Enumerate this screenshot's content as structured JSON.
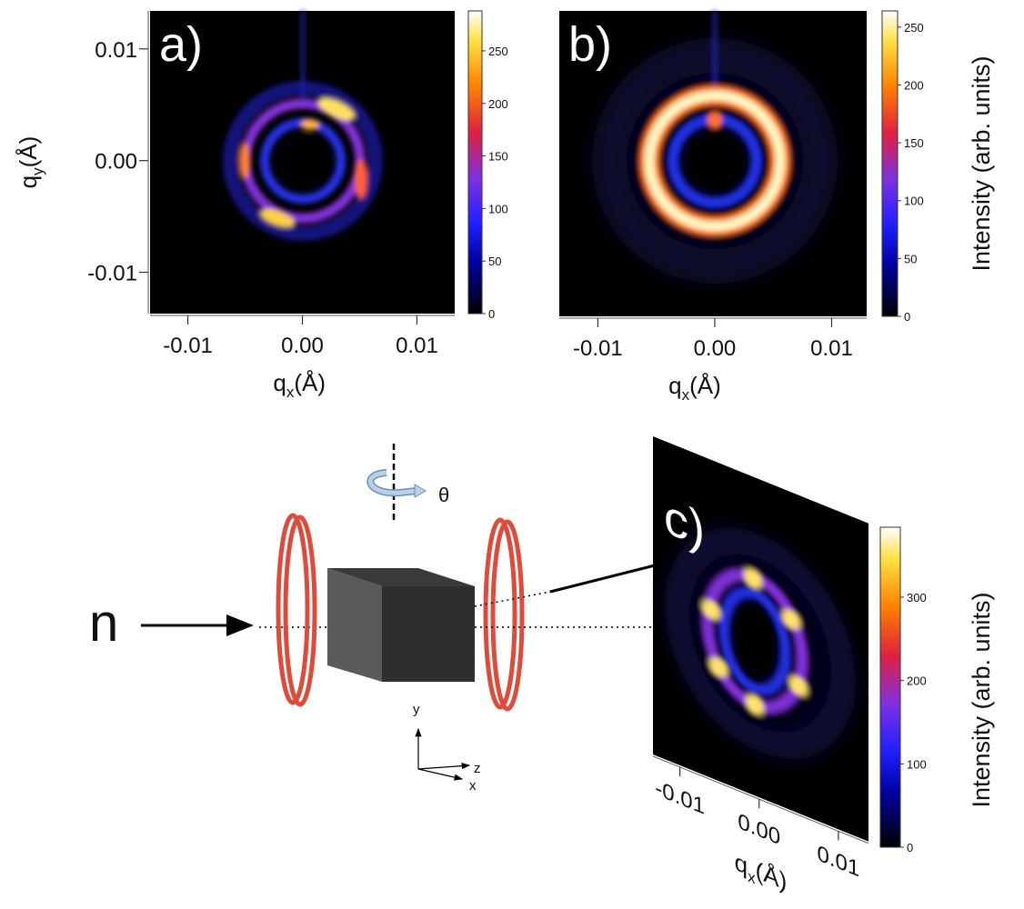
{
  "panels": [
    {
      "label": "a)",
      "xlim": [
        -0.0133,
        0.0133
      ],
      "ylim": [
        -0.0137,
        0.0134
      ],
      "xticks": [
        -0.01,
        {
          "value": 0,
          "label": "0.00"
        },
        0.01
      ],
      "yticks": [
        0.01,
        {
          "value": 0,
          "label": "0.00"
        },
        -0.01
      ],
      "xlabel": {
        "base": "q",
        "sub": "x",
        "unit": "(Å)"
      },
      "ylabel": {
        "base": "q",
        "sub": "y",
        "unit": "(Å)"
      },
      "colorbar": {
        "lim": [
          0,
          288
        ],
        "ticks": [
          0,
          50,
          100,
          150,
          200,
          250
        ]
      }
    },
    {
      "label": "b)",
      "xlim": [
        -0.0133,
        0.013
      ],
      "xticks": [
        -0.01,
        {
          "value": 0,
          "label": "0.00"
        },
        0.01
      ],
      "xlabel": {
        "base": "q",
        "sub": "x",
        "unit": "(Å)"
      },
      "colorbar": {
        "lim": [
          0,
          264
        ],
        "ticks": [
          0,
          50,
          100,
          150,
          200,
          250
        ]
      },
      "colorbar_label": "Intensity (arb. units)"
    },
    {
      "label": "c)",
      "xlim": [
        -0.0134,
        0.0138
      ],
      "xticks": [
        -0.01,
        {
          "value": 0,
          "label": "0.00"
        },
        0.01
      ],
      "xlabel": {
        "base": "q",
        "sub": "x",
        "unit": "(Å)"
      },
      "colorbar": {
        "lim": [
          0,
          384
        ],
        "ticks": [
          0,
          100,
          200,
          300
        ]
      },
      "colorbar_label": "Intensity (arb. units)"
    }
  ],
  "diagram": {
    "neutron": "n",
    "rotation": "θ",
    "axis_y": "y",
    "axis_z": "z",
    "axis_x": "x"
  }
}
